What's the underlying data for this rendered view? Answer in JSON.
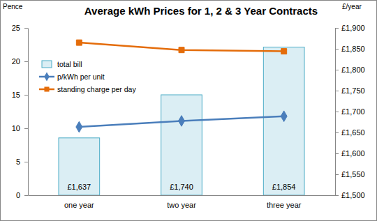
{
  "chart_data": {
    "type": "bar",
    "title": "Average kWh Prices for 1, 2 & 3 Year Contracts",
    "y_label": "Pence",
    "y2_label": "£/year",
    "categories": [
      "one year",
      "two year",
      "three year"
    ],
    "series": [
      {
        "name": "total bill",
        "type": "bar",
        "axis": "y2",
        "color": "#dbeef4",
        "values": [
          1637,
          1740,
          1854
        ],
        "value_labels": [
          "£1,637",
          "£1,740",
          "£1,854"
        ],
        "data_labels": true
      },
      {
        "name": "p/kWh per unit",
        "type": "line",
        "axis": "y",
        "color": "#4a7ebb",
        "marker": "diamond",
        "values": [
          10.2,
          11.1,
          11.8
        ]
      },
      {
        "name": "standing charge per day",
        "type": "line",
        "axis": "y",
        "color": "#e46c0a",
        "marker": "square",
        "values": [
          22.8,
          21.7,
          21.5
        ]
      }
    ],
    "ylim": [
      0,
      25
    ],
    "yticks": [
      0,
      5,
      10,
      15,
      20,
      25
    ],
    "y2lim": [
      1500,
      1900
    ],
    "y2ticks": [
      {
        "value": 1500,
        "label": "£1,500"
      },
      {
        "value": 1550,
        "label": "£1,550"
      },
      {
        "value": 1600,
        "label": "£1,600"
      },
      {
        "value": 1650,
        "label": "£1,650"
      },
      {
        "value": 1700,
        "label": "£1,700"
      },
      {
        "value": 1750,
        "label": "£1,750"
      },
      {
        "value": 1800,
        "label": "£1,800"
      },
      {
        "value": 1850,
        "label": "£1,850"
      },
      {
        "value": 1900,
        "label": "£1,900"
      }
    ],
    "grid": false,
    "legend": "upper left"
  }
}
